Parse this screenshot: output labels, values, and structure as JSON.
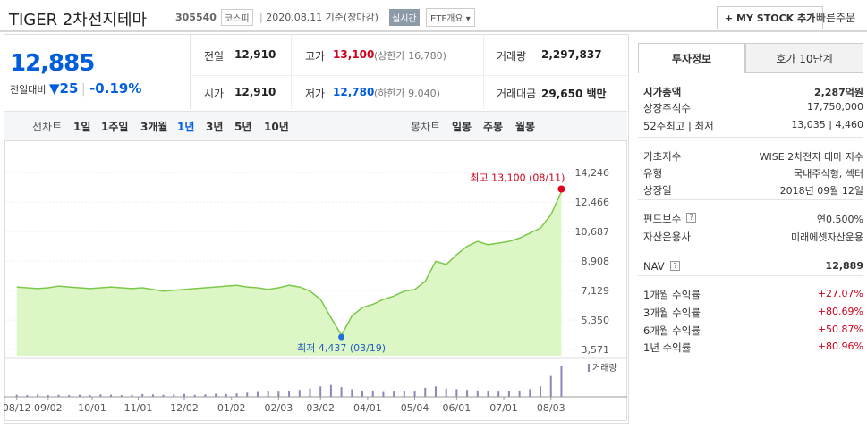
{
  "header": {
    "name": "TIGER 2차전지테마",
    "code": "305540",
    "market": "코스피",
    "date": "2020.08.11 기준(장마감)",
    "realtime": "실시간",
    "etf_button": "ETF개요",
    "mystock_button": "+ MY STOCK 추가",
    "quick_order": "빠른주문"
  },
  "quote": {
    "price": "12,885",
    "change_label": "전일대비",
    "change": "25",
    "change_pct": "-0.19%"
  },
  "summary": {
    "rows": [
      [
        {
          "label": "전일",
          "value": "12,910"
        },
        {
          "label": "고가",
          "value": "13,100",
          "extra": "(상한가 16,780)"
        },
        {
          "label": "거래량",
          "value": "2,297,837"
        }
      ],
      [
        {
          "label": "시가",
          "value": "12,910"
        },
        {
          "label": "저가",
          "value": "12,780",
          "extra": "(하한가 9,040)"
        },
        {
          "label": "거래대금",
          "value": "29,650 백만"
        }
      ]
    ]
  },
  "chart_tabs": {
    "line_label": "선차트",
    "periods": [
      "1일",
      "1주일",
      "3개월",
      "1년",
      "3년",
      "5년",
      "10년"
    ],
    "selected": 3,
    "candle_label": "봉차트",
    "candles": [
      "일봉",
      "주봉",
      "월봉"
    ]
  },
  "chart_data": {
    "type": "line",
    "color": "#7cc84a",
    "fill": "#dcf6c6",
    "grid": true,
    "series": [
      {
        "values": [
          7350,
          7300,
          7250,
          7300,
          7400,
          7350,
          7300,
          7250,
          7300,
          7350,
          7300,
          7250,
          7300,
          7200,
          7100,
          7150,
          7200,
          7250,
          7300,
          7350,
          7400,
          7450,
          7350,
          7300,
          7200,
          7300,
          7450,
          7350,
          7100,
          6600,
          5500,
          4437,
          5600,
          6100,
          6300,
          6600,
          6800,
          7100,
          7200,
          7700,
          8900,
          8700,
          9300,
          9800,
          10100,
          9900,
          10000,
          10100,
          10300,
          10600,
          10900,
          11700,
          13100
        ]
      }
    ],
    "ylim": [
      3200,
      15500
    ],
    "yticks": [
      {
        "value": 3571,
        "label": "3,571"
      },
      {
        "value": 5350,
        "label": "5,350"
      },
      {
        "value": 7129,
        "label": "7,129"
      },
      {
        "value": 8908,
        "label": "8,908"
      },
      {
        "value": 10687,
        "label": "10,687"
      },
      {
        "value": 12466,
        "label": "12,466"
      },
      {
        "value": 14246,
        "label": "14,246"
      }
    ],
    "xlim": [
      -1,
      53.5
    ],
    "xticks": [
      {
        "value": 0,
        "label": "08/12"
      },
      {
        "value": 3,
        "label": "09/02"
      },
      {
        "value": 7.2,
        "label": "10/01"
      },
      {
        "value": 11.6,
        "label": "11/01"
      },
      {
        "value": 16,
        "label": "12/02"
      },
      {
        "value": 20.5,
        "label": "01/02"
      },
      {
        "value": 25,
        "label": "02/03"
      },
      {
        "value": 29,
        "label": "03/02"
      },
      {
        "value": 33.5,
        "label": "04/01"
      },
      {
        "value": 38,
        "label": "05/04"
      },
      {
        "value": 42,
        "label": "06/01"
      },
      {
        "value": 46.5,
        "label": "07/01"
      },
      {
        "value": 51,
        "label": "08/03"
      }
    ],
    "high_label": "최고 13,100 (08/11)",
    "low_label": "최저 4,437 (03/19)",
    "volume": {
      "name": "거래량",
      "color": "#8a86b8",
      "ylim": [
        0,
        100
      ],
      "values": [
        6,
        5,
        7,
        5,
        6,
        5,
        6,
        5,
        7,
        6,
        5,
        6,
        8,
        7,
        6,
        7,
        8,
        6,
        7,
        9,
        8,
        10,
        12,
        14,
        16,
        15,
        18,
        20,
        24,
        30,
        34,
        28,
        22,
        18,
        16,
        14,
        15,
        16,
        18,
        26,
        30,
        24,
        22,
        20,
        18,
        16,
        15,
        17,
        18,
        22,
        30,
        60,
        90
      ]
    }
  },
  "side": {
    "tabs": [
      "투자정보",
      "호가 10단계"
    ],
    "active": 0,
    "sections": [
      [
        {
          "label": "시가총액",
          "value": "2,287억원"
        },
        {
          "label": "상장주식수",
          "value": "17,750,000"
        },
        {
          "label": "52주최고 | 최저",
          "value": "13,035 | 4,460"
        }
      ],
      [
        {
          "label": "기초지수",
          "value": "WISE 2차전지 테마 지수"
        },
        {
          "label": "유형",
          "value": "국내주식형, 섹터"
        },
        {
          "label": "상장일",
          "value": "2018년 09월 12일"
        }
      ],
      [
        {
          "label": "펀드보수",
          "value": "연0.500%"
        },
        {
          "label": "자산운용사",
          "value": "미래에셋자산운용"
        }
      ],
      [
        {
          "label": "NAV",
          "value": "12,889"
        }
      ],
      [
        {
          "label": "1개월 수익률",
          "value": "+27.07%"
        },
        {
          "label": "3개월 수익률",
          "value": "+80.69%"
        },
        {
          "label": "6개월 수익률",
          "value": "+50.87%"
        },
        {
          "label": "1년 수익률",
          "value": "+80.96%"
        }
      ]
    ]
  }
}
